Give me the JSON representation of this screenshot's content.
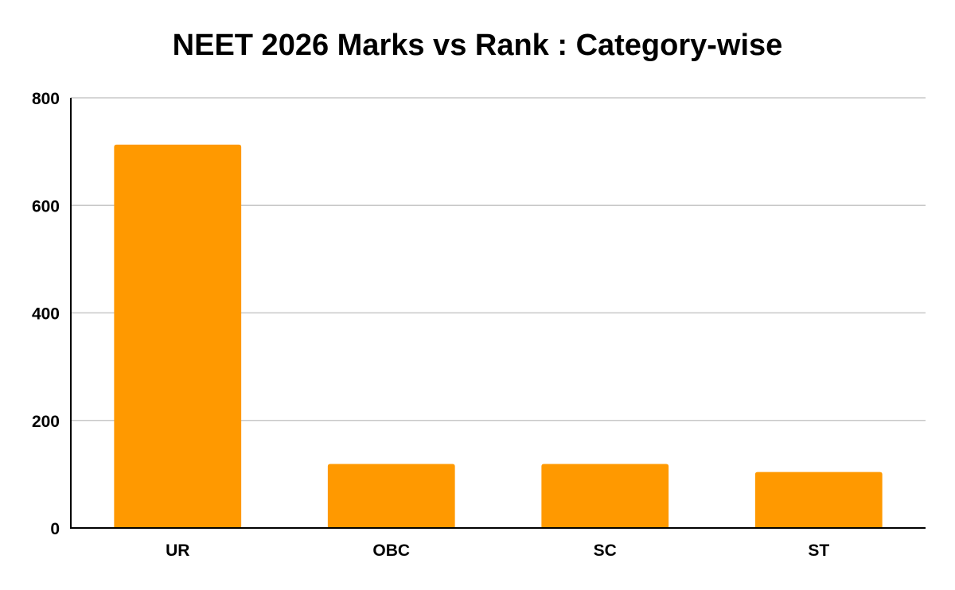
{
  "chart_data": {
    "type": "bar",
    "title": "NEET 2026 Marks vs Rank : Category-wise",
    "xlabel": "",
    "ylabel": "",
    "categories": [
      "UR",
      "OBC",
      "SC",
      "ST"
    ],
    "values": [
      713,
      119,
      119,
      104
    ],
    "ylim": [
      0,
      800
    ],
    "yticks": [
      0,
      200,
      400,
      600,
      800
    ],
    "grid": true,
    "legend": "none",
    "bar_color": "#FF9900"
  }
}
